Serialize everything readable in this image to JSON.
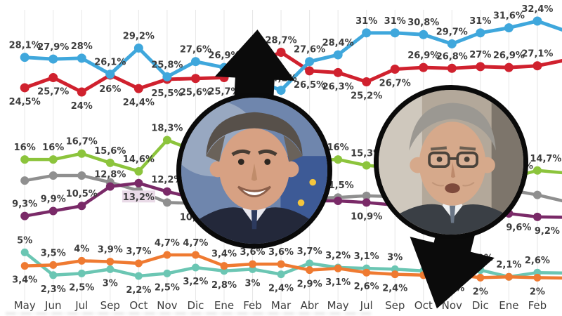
{
  "chart_data": {
    "type": "line",
    "title": "",
    "grid": true,
    "grid_color": "#E6E6E6",
    "label_color": "#3D3D3D",
    "highlight_bg": "#E9DAE7",
    "months": [
      "May",
      "Jun",
      "Jul",
      "Sep",
      "Oct",
      "Nov",
      "Dic",
      "Ene",
      "Feb",
      "Mar",
      "Abr",
      "May",
      "Jul",
      "Sep",
      "Oct",
      "Nov",
      "Dic",
      "Ene",
      "Feb"
    ],
    "series": [
      {
        "name": "gray",
        "color": "#8F8F8F",
        "width": 4.5,
        "r": 6,
        "values": [
          13.5,
          14.1,
          14.1,
          13.3,
          12.3,
          10.9,
          10.8,
          10.9,
          11,
          11.2,
          11.4,
          11.5,
          11.7,
          11.6,
          11.7,
          11.9,
          12.2,
          12.4,
          11.8
        ],
        "exit": 11,
        "labels": [
          null,
          null,
          null,
          null,
          null,
          null,
          {
            "t": "10,8%",
            "p": "b"
          },
          null,
          null,
          null,
          null,
          {
            "t": "11,5%",
            "p": "a"
          },
          null,
          null,
          null,
          null,
          null,
          null,
          null
        ]
      },
      {
        "name": "purple",
        "color": "#7A2A68",
        "width": 4.5,
        "r": 6,
        "values": [
          9.3,
          9.9,
          10.5,
          12.8,
          13.2,
          12.2,
          11.4,
          11.3,
          11.2,
          11.1,
          11.1,
          11.1,
          10.9,
          10.6,
          10.3,
          10,
          9.8,
          9.6,
          9.2
        ],
        "exit": 9.15,
        "labels": [
          {
            "t": "9,3%",
            "p": "a"
          },
          {
            "t": "9,9%",
            "p": "a"
          },
          {
            "t": "10,5%",
            "p": "a"
          },
          {
            "t": "12,8%",
            "p": "a"
          },
          {
            "t": "13,2%",
            "p": "b",
            "hl": true
          },
          {
            "t": "12,2%",
            "p": "a"
          },
          null,
          null,
          null,
          null,
          null,
          null,
          {
            "t": "10,9%",
            "p": "b"
          },
          null,
          null,
          null,
          null,
          {
            "t": "9,6%",
            "p": "b",
            "dx": 14
          },
          {
            "t": "9,2%",
            "p": "b",
            "dx": 14
          }
        ]
      },
      {
        "name": "green",
        "color": "#8CC43C",
        "width": 4.5,
        "r": 6,
        "values": [
          16,
          16,
          16.7,
          15.6,
          14.6,
          18.3,
          17,
          16.5,
          16.2,
          16,
          15.9,
          16,
          15.3,
          15,
          14.6,
          14.2,
          14,
          13.8,
          14.7
        ],
        "exit": 14.4,
        "labels": [
          {
            "t": "16%",
            "p": "a"
          },
          {
            "t": "16%",
            "p": "a"
          },
          {
            "t": "16,7%",
            "p": "a"
          },
          {
            "t": "15,6%",
            "p": "a"
          },
          {
            "t": "14,6%",
            "p": "a"
          },
          {
            "t": "18,3%",
            "p": "a"
          },
          null,
          null,
          null,
          null,
          null,
          {
            "t": "16%",
            "p": "a"
          },
          {
            "t": "15,3%",
            "p": "a"
          },
          null,
          null,
          null,
          null,
          {
            "t": "13,8%",
            "p": "a",
            "dx": 12
          },
          {
            "t": "14,7%",
            "p": "a",
            "dx": 12
          }
        ]
      },
      {
        "name": "turquoise",
        "color": "#6BC6B3",
        "width": 4.5,
        "r": 5.5,
        "values": [
          5,
          2.3,
          2.5,
          3,
          2.2,
          2.5,
          3.2,
          2.8,
          3,
          2.4,
          3.7,
          3.2,
          3.1,
          3,
          2.8,
          2.7,
          2.9,
          2.1,
          2.6
        ],
        "exit": 2.55,
        "labels": [
          {
            "t": "5%",
            "p": "a"
          },
          {
            "t": "2,3%",
            "p": "b"
          },
          {
            "t": "2,5%",
            "p": "b"
          },
          {
            "t": "3%",
            "p": "b"
          },
          {
            "t": "2,2%",
            "p": "b"
          },
          {
            "t": "2,5%",
            "p": "b"
          },
          {
            "t": "3,2%",
            "p": "b"
          },
          {
            "t": "2,8%",
            "p": "b"
          },
          {
            "t": "3%",
            "p": "b"
          },
          {
            "t": "2,4%",
            "p": "b"
          },
          {
            "t": "3,7%",
            "p": "a"
          },
          {
            "t": "3,2%",
            "p": "a"
          },
          {
            "t": "3,1%",
            "p": "a"
          },
          {
            "t": "3%",
            "p": "a"
          },
          null,
          {
            "t": "2,7%",
            "p": "a"
          },
          {
            "t": "2,9%",
            "p": "a"
          },
          {
            "t": "2,1%",
            "p": "a"
          },
          {
            "t": "2,6%",
            "p": "a"
          }
        ]
      },
      {
        "name": "orange",
        "color": "#EF7A31",
        "width": 4.5,
        "r": 5.5,
        "values": [
          3.4,
          3.5,
          4,
          3.9,
          3.7,
          4.7,
          4.7,
          3.4,
          3.6,
          3.6,
          2.9,
          3.1,
          2.6,
          2.4,
          2.3,
          2.4,
          2,
          2.1,
          2
        ],
        "exit": 1.95,
        "labels": [
          {
            "t": "3,4%",
            "p": "b"
          },
          {
            "t": "3,5%",
            "p": "a"
          },
          {
            "t": "4%",
            "p": "a"
          },
          {
            "t": "3,9%",
            "p": "a"
          },
          {
            "t": "3,7%",
            "p": "a"
          },
          {
            "t": "4,7%",
            "p": "a"
          },
          {
            "t": "4,7%",
            "p": "a"
          },
          {
            "t": "3,4%",
            "p": "a"
          },
          {
            "t": "3,6%",
            "p": "a"
          },
          {
            "t": "3,6%",
            "p": "a"
          },
          {
            "t": "2,9%",
            "p": "b"
          },
          {
            "t": "3,1%",
            "p": "b"
          },
          {
            "t": "2,6%",
            "p": "b"
          },
          {
            "t": "2,4%",
            "p": "b"
          },
          null,
          {
            "t": "2,4%",
            "p": "b"
          },
          {
            "t": "2%",
            "p": "b"
          },
          null,
          {
            "t": "2%",
            "p": "b"
          }
        ]
      },
      {
        "name": "red",
        "color": "#D0212E",
        "width": 5,
        "r": 6.5,
        "values": [
          24.5,
          25.7,
          24,
          26,
          24.4,
          25.5,
          25.6,
          25.7,
          27.3,
          28.7,
          26.5,
          26.3,
          25.2,
          26.7,
          26.9,
          26.8,
          27,
          26.9,
          27.1
        ],
        "exit": 27.8,
        "labels": [
          {
            "t": "24,5%",
            "p": "b"
          },
          {
            "t": "25,7%",
            "p": "b"
          },
          {
            "t": "24%",
            "p": "b"
          },
          {
            "t": "26%",
            "p": "b"
          },
          {
            "t": "24,4%",
            "p": "b"
          },
          {
            "t": "25,5%",
            "p": "b"
          },
          {
            "t": "25,6%",
            "p": "b"
          },
          {
            "t": "25,7%",
            "p": "b"
          },
          null,
          {
            "t": "28,7%",
            "p": "a"
          },
          {
            "t": "26,5%",
            "p": "b"
          },
          {
            "t": "26,3%",
            "p": "b"
          },
          {
            "t": "25,2%",
            "p": "b"
          },
          {
            "t": "26,7%",
            "p": "b"
          },
          {
            "t": "26,9%",
            "p": "a"
          },
          {
            "t": "26,8%",
            "p": "a"
          },
          {
            "t": "27%",
            "p": "a"
          },
          {
            "t": "26,9%",
            "p": "a"
          },
          {
            "t": "27,1%",
            "p": "a"
          }
        ]
      },
      {
        "name": "blue",
        "color": "#3FA7DC",
        "width": 5,
        "r": 6.5,
        "values": [
          28.1,
          27.9,
          28,
          26.1,
          29.2,
          25.8,
          27.6,
          26.9,
          25.5,
          24.2,
          27.6,
          28.4,
          31,
          31,
          30.8,
          29.7,
          31,
          31.6,
          32.4
        ],
        "exit": 31.2,
        "labels": [
          {
            "t": "28,1%",
            "p": "a"
          },
          {
            "t": "27,9%",
            "p": "a"
          },
          {
            "t": "28%",
            "p": "a"
          },
          {
            "t": "26,1%",
            "p": "a"
          },
          {
            "t": "29,2%",
            "p": "a"
          },
          {
            "t": "25,8%",
            "p": "a"
          },
          {
            "t": "27,6%",
            "p": "a"
          },
          {
            "t": "26,9%",
            "p": "a"
          },
          null,
          {
            "t": "24,2%",
            "p": "a"
          },
          {
            "t": "27,6%",
            "p": "a"
          },
          {
            "t": "28,4%",
            "p": "a"
          },
          {
            "t": "31%",
            "p": "a"
          },
          {
            "t": "31%",
            "p": "a"
          },
          {
            "t": "30,8%",
            "p": "a"
          },
          {
            "t": "29,7%",
            "p": "a"
          },
          {
            "t": "31%",
            "p": "a"
          },
          {
            "t": "31,6%",
            "p": "a"
          },
          {
            "t": "32,4%",
            "p": "a"
          }
        ]
      }
    ]
  },
  "decor": {
    "up_arrow": {
      "direction": "up",
      "color": "#0B0B0B"
    },
    "down_arrow": {
      "direction": "down",
      "color": "#0B0B0B"
    },
    "left_photo": {
      "person": "Pedro Sánchez"
    },
    "right_photo": {
      "person": "Alberto Núñez Feijóo"
    }
  }
}
